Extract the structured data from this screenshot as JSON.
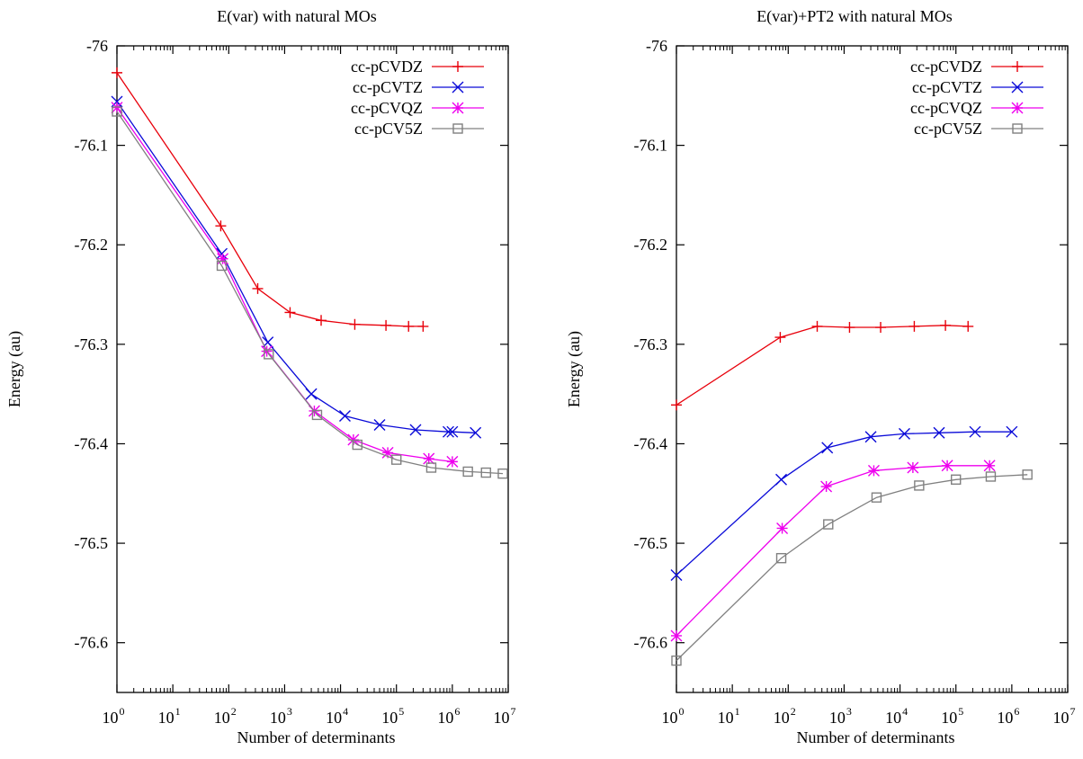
{
  "colors": {
    "cc-pCVDZ": "#e8000b",
    "cc-pCVTZ": "#0a0ad8",
    "cc-pCVQZ": "#ee00ee",
    "cc-pCV5Z": "#808080"
  },
  "chart_data": [
    {
      "type": "line",
      "title": "E(var) with natural MOs",
      "xlabel": "Number of determinants",
      "ylabel": "Energy (au)",
      "xscale": "log",
      "xlim": [
        1,
        10000000
      ],
      "ylim": [
        -76.65,
        -76.0
      ],
      "xticks": [
        1,
        10,
        100,
        1000,
        10000,
        100000,
        1000000,
        10000000
      ],
      "x_tick_base": "10",
      "x_tick_exponents": [
        "0",
        "1",
        "2",
        "3",
        "4",
        "5",
        "6",
        "7"
      ],
      "yticks": [
        -76.6,
        -76.5,
        -76.4,
        -76.3,
        -76.2,
        -76.1,
        -76.0
      ],
      "ytick_labels": [
        "-76.6",
        "-76.5",
        "-76.4",
        "-76.3",
        "-76.2",
        "-76.1",
        "-76"
      ],
      "grid": false,
      "legend": "top-right",
      "series": [
        {
          "name": "cc-pCVDZ",
          "marker": "plus",
          "x": [
            1,
            72,
            330,
            1250,
            4500,
            18000,
            65000,
            165000,
            300000
          ],
          "y": [
            -76.027,
            -76.181,
            -76.244,
            -76.268,
            -76.276,
            -76.28,
            -76.281,
            -76.282,
            -76.282
          ]
        },
        {
          "name": "cc-pCVTZ",
          "marker": "cross",
          "x": [
            1,
            75,
            500,
            3000,
            12000,
            50000,
            220000,
            850000,
            1000000,
            2600000
          ],
          "y": [
            -76.056,
            -76.209,
            -76.298,
            -76.35,
            -76.372,
            -76.381,
            -76.386,
            -76.388,
            -76.388,
            -76.389
          ]
        },
        {
          "name": "cc-pCVQZ",
          "marker": "star",
          "x": [
            1,
            78,
            480,
            3400,
            17000,
            70000,
            380000,
            1000000
          ],
          "y": [
            -76.062,
            -76.214,
            -76.307,
            -76.367,
            -76.396,
            -76.409,
            -76.415,
            -76.418
          ]
        },
        {
          "name": "cc-pCV5Z",
          "marker": "square",
          "x": [
            1,
            75,
            520,
            3800,
            20000,
            100000,
            420000,
            1900000,
            4000000,
            8000000
          ],
          "y": [
            -76.066,
            -76.221,
            -76.31,
            -76.371,
            -76.401,
            -76.416,
            -76.424,
            -76.428,
            -76.429,
            -76.43
          ]
        }
      ]
    },
    {
      "type": "line",
      "title": "E(var)+PT2 with natural MOs",
      "xlabel": "Number of determinants",
      "ylabel": "Energy (au)",
      "xscale": "log",
      "xlim": [
        1,
        10000000
      ],
      "ylim": [
        -76.65,
        -76.0
      ],
      "xticks": [
        1,
        10,
        100,
        1000,
        10000,
        100000,
        1000000,
        10000000
      ],
      "x_tick_base": "10",
      "x_tick_exponents": [
        "0",
        "1",
        "2",
        "3",
        "4",
        "5",
        "6",
        "7"
      ],
      "yticks": [
        -76.6,
        -76.5,
        -76.4,
        -76.3,
        -76.2,
        -76.1,
        -76.0
      ],
      "ytick_labels": [
        "-76.6",
        "-76.5",
        "-76.4",
        "-76.3",
        "-76.2",
        "-76.1",
        "-76"
      ],
      "grid": false,
      "legend": "top-right",
      "series": [
        {
          "name": "cc-pCVDZ",
          "marker": "plus",
          "x": [
            1,
            72,
            330,
            1250,
            4500,
            18000,
            65000,
            165000
          ],
          "y": [
            -76.361,
            -76.293,
            -76.282,
            -76.283,
            -76.283,
            -76.282,
            -76.281,
            -76.282
          ]
        },
        {
          "name": "cc-pCVTZ",
          "marker": "cross",
          "x": [
            1,
            75,
            500,
            3000,
            12000,
            50000,
            220000,
            1000000
          ],
          "y": [
            -76.532,
            -76.436,
            -76.404,
            -76.393,
            -76.39,
            -76.389,
            -76.388,
            -76.388
          ]
        },
        {
          "name": "cc-pCVQZ",
          "marker": "star",
          "x": [
            1,
            78,
            480,
            3400,
            17000,
            70000,
            400000
          ],
          "y": [
            -76.593,
            -76.485,
            -76.443,
            -76.427,
            -76.424,
            -76.422,
            -76.422
          ]
        },
        {
          "name": "cc-pCV5Z",
          "marker": "square",
          "x": [
            1,
            75,
            520,
            3800,
            22000,
            100000,
            420000,
            1900000
          ],
          "y": [
            -76.618,
            -76.515,
            -76.481,
            -76.454,
            -76.442,
            -76.436,
            -76.433,
            -76.431
          ]
        }
      ]
    }
  ]
}
